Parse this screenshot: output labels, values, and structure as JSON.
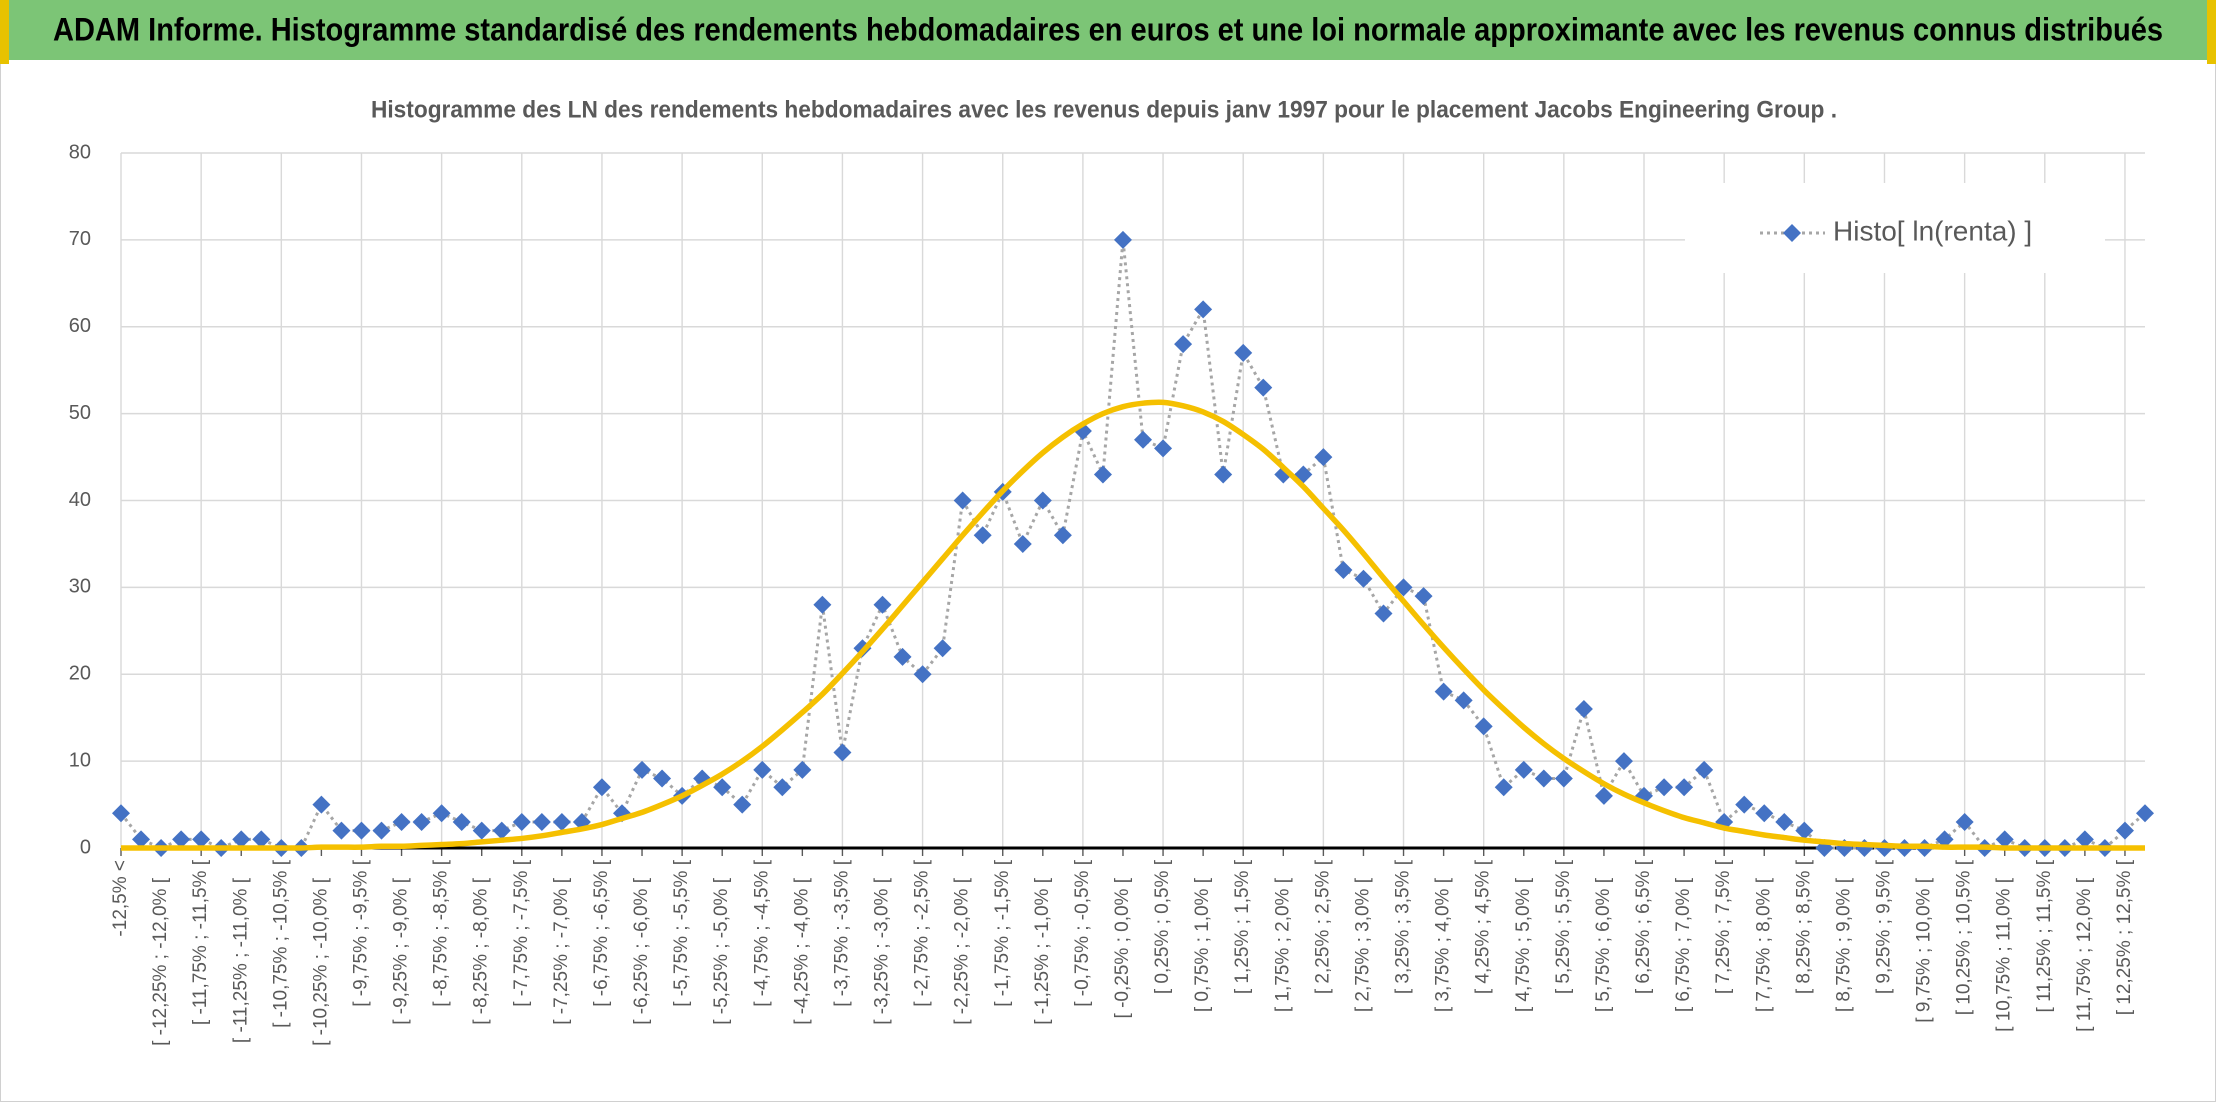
{
  "chart_data": {
    "type": "line",
    "header": "ADAM Informe. Histogramme standardisé des rendements hebdomadaires en euros et une loi normale approximante avec les revenus connus distribués",
    "title": "Histogramme des LN des rendements hebdomadaires avec les revenus depuis janv 1997 pour le placement Jacobs Engineering Group .",
    "categories": [
      "-12,5% <",
      null,
      "[ -12,25% ; -12,0% [",
      null,
      "[ -11,75% ; -11,5% [",
      null,
      "[ -11,25% ; -11,0% [",
      null,
      "[ -10,75% ; -10,5% [",
      null,
      "[ -10,25% ; -10,0% [",
      null,
      "[ -9,75% ; -9,5% [",
      null,
      "[ -9,25% ; -9,0% [",
      null,
      "[ -8,75% ; -8,5% [",
      null,
      "[ -8,25% ; -8,0% [",
      null,
      "[ -7,75% ; -7,5% [",
      null,
      "[ -7,25% ; -7,0% [",
      null,
      "[ -6,75% ; -6,5% [",
      null,
      "[ -6,25% ; -6,0% [",
      null,
      "[ -5,75% ; -5,5% [",
      null,
      "[ -5,25% ; -5,0% [",
      null,
      "[ -4,75% ; -4,5% [",
      null,
      "[ -4,25% ; -4,0% [",
      null,
      "[ -3,75% ; -3,5% [",
      null,
      "[ -3,25% ; -3,0% [",
      null,
      "[ -2,75% ; -2,5% [",
      null,
      "[ -2,25% ; -2,0% [",
      null,
      "[ -1,75% ; -1,5% [",
      null,
      "[ -1,25% ; -1,0% [",
      null,
      "[ -0,75% ; -0,5% [",
      null,
      "[ -0,25% ; 0,0% [",
      null,
      "[ 0,25% ; 0,5% [",
      null,
      "[ 0,75% ; 1,0% [",
      null,
      "[ 1,25% ; 1,5% [",
      null,
      "[ 1,75% ; 2,0% [",
      null,
      "[ 2,25% ; 2,5% [",
      null,
      "[ 2,75% ; 3,0% [",
      null,
      "[ 3,25% ; 3,5% [",
      null,
      "[ 3,75% ; 4,0% [",
      null,
      "[ 4,25% ; 4,5% [",
      null,
      "[ 4,75% ; 5,0% [",
      null,
      "[ 5,25% ; 5,5% [",
      null,
      "[ 5,75% ; 6,0% [",
      null,
      "[ 6,25% ; 6,5% [",
      null,
      "[ 6,75% ; 7,0% [",
      null,
      "[ 7,25% ; 7,5% [",
      null,
      "[ 7,75% ; 8,0% [",
      null,
      "[ 8,25% ; 8,5% [",
      null,
      "[ 8,75% ; 9,0% [",
      null,
      "[ 9,25% ; 9,5% [",
      null,
      "[ 9,75% ; 10,0% [",
      null,
      "[ 10,25% ; 10,5% [",
      null,
      "[ 10,75% ; 11,0% [",
      null,
      "[ 11,25% ; 11,5% [",
      null,
      "[ 11,75% ; 12,0% [",
      null,
      "[ 12,25% ; 12,5% [",
      null
    ],
    "series": [
      {
        "name": "Histo[ ln(renta) ]",
        "color": "#4472c4",
        "line_color": "#a6a6a6",
        "line_style": "dotted",
        "marker": "diamond",
        "values": [
          4,
          1,
          0,
          1,
          1,
          0,
          1,
          1,
          0,
          0,
          5,
          2,
          2,
          2,
          3,
          3,
          4,
          3,
          2,
          2,
          3,
          3,
          3,
          3,
          7,
          4,
          9,
          8,
          6,
          8,
          7,
          5,
          9,
          7,
          9,
          28,
          11,
          23,
          28,
          22,
          20,
          23,
          40,
          36,
          41,
          35,
          40,
          36,
          48,
          43,
          70,
          47,
          46,
          58,
          62,
          43,
          57,
          53,
          43,
          43,
          45,
          32,
          31,
          27,
          30,
          29,
          18,
          17,
          14,
          7,
          9,
          8,
          8,
          16,
          6,
          10,
          6,
          7,
          7,
          9,
          3,
          5,
          4,
          3,
          2,
          0,
          0,
          0,
          0,
          0,
          0,
          1,
          3,
          0,
          1,
          0,
          0,
          0,
          1,
          0,
          2,
          4
        ]
      },
      {
        "color": "#f5c000",
        "line_style": "smooth",
        "marker": "none",
        "values": [
          0,
          0,
          0,
          0,
          0,
          0,
          0,
          0,
          0,
          0,
          0.1,
          0.1,
          0.1,
          0.2,
          0.2,
          0.3,
          0.4,
          0.5,
          0.7,
          0.9,
          1.1,
          1.4,
          1.8,
          2.2,
          2.7,
          3.4,
          4.1,
          5.0,
          6.0,
          7.2,
          8.5,
          10.0,
          11.7,
          13.6,
          15.6,
          17.7,
          20.1,
          22.6,
          25.2,
          27.9,
          30.6,
          33.3,
          36.0,
          38.6,
          41.1,
          43.4,
          45.5,
          47.3,
          48.8,
          50.0,
          50.8,
          51.2,
          51.3,
          50.9,
          50.2,
          49.1,
          47.6,
          45.9,
          43.8,
          41.6,
          39.1,
          36.6,
          33.9,
          31.1,
          28.4,
          25.7,
          23.1,
          20.6,
          18.2,
          16.0,
          13.9,
          12.0,
          10.3,
          8.8,
          7.4,
          6.2,
          5.2,
          4.3,
          3.5,
          2.9,
          2.3,
          1.9,
          1.5,
          1.2,
          0.9,
          0.7,
          0.5,
          0.4,
          0.3,
          0.2,
          0.2,
          0.1,
          0.1,
          0.1,
          0,
          0,
          0,
          0,
          0,
          0,
          0,
          0
        ]
      }
    ],
    "ylim": [
      0,
      80
    ],
    "yticks": [
      0,
      10,
      20,
      30,
      40,
      50,
      60,
      70,
      80
    ],
    "grid": true,
    "legend": "top-right"
  }
}
